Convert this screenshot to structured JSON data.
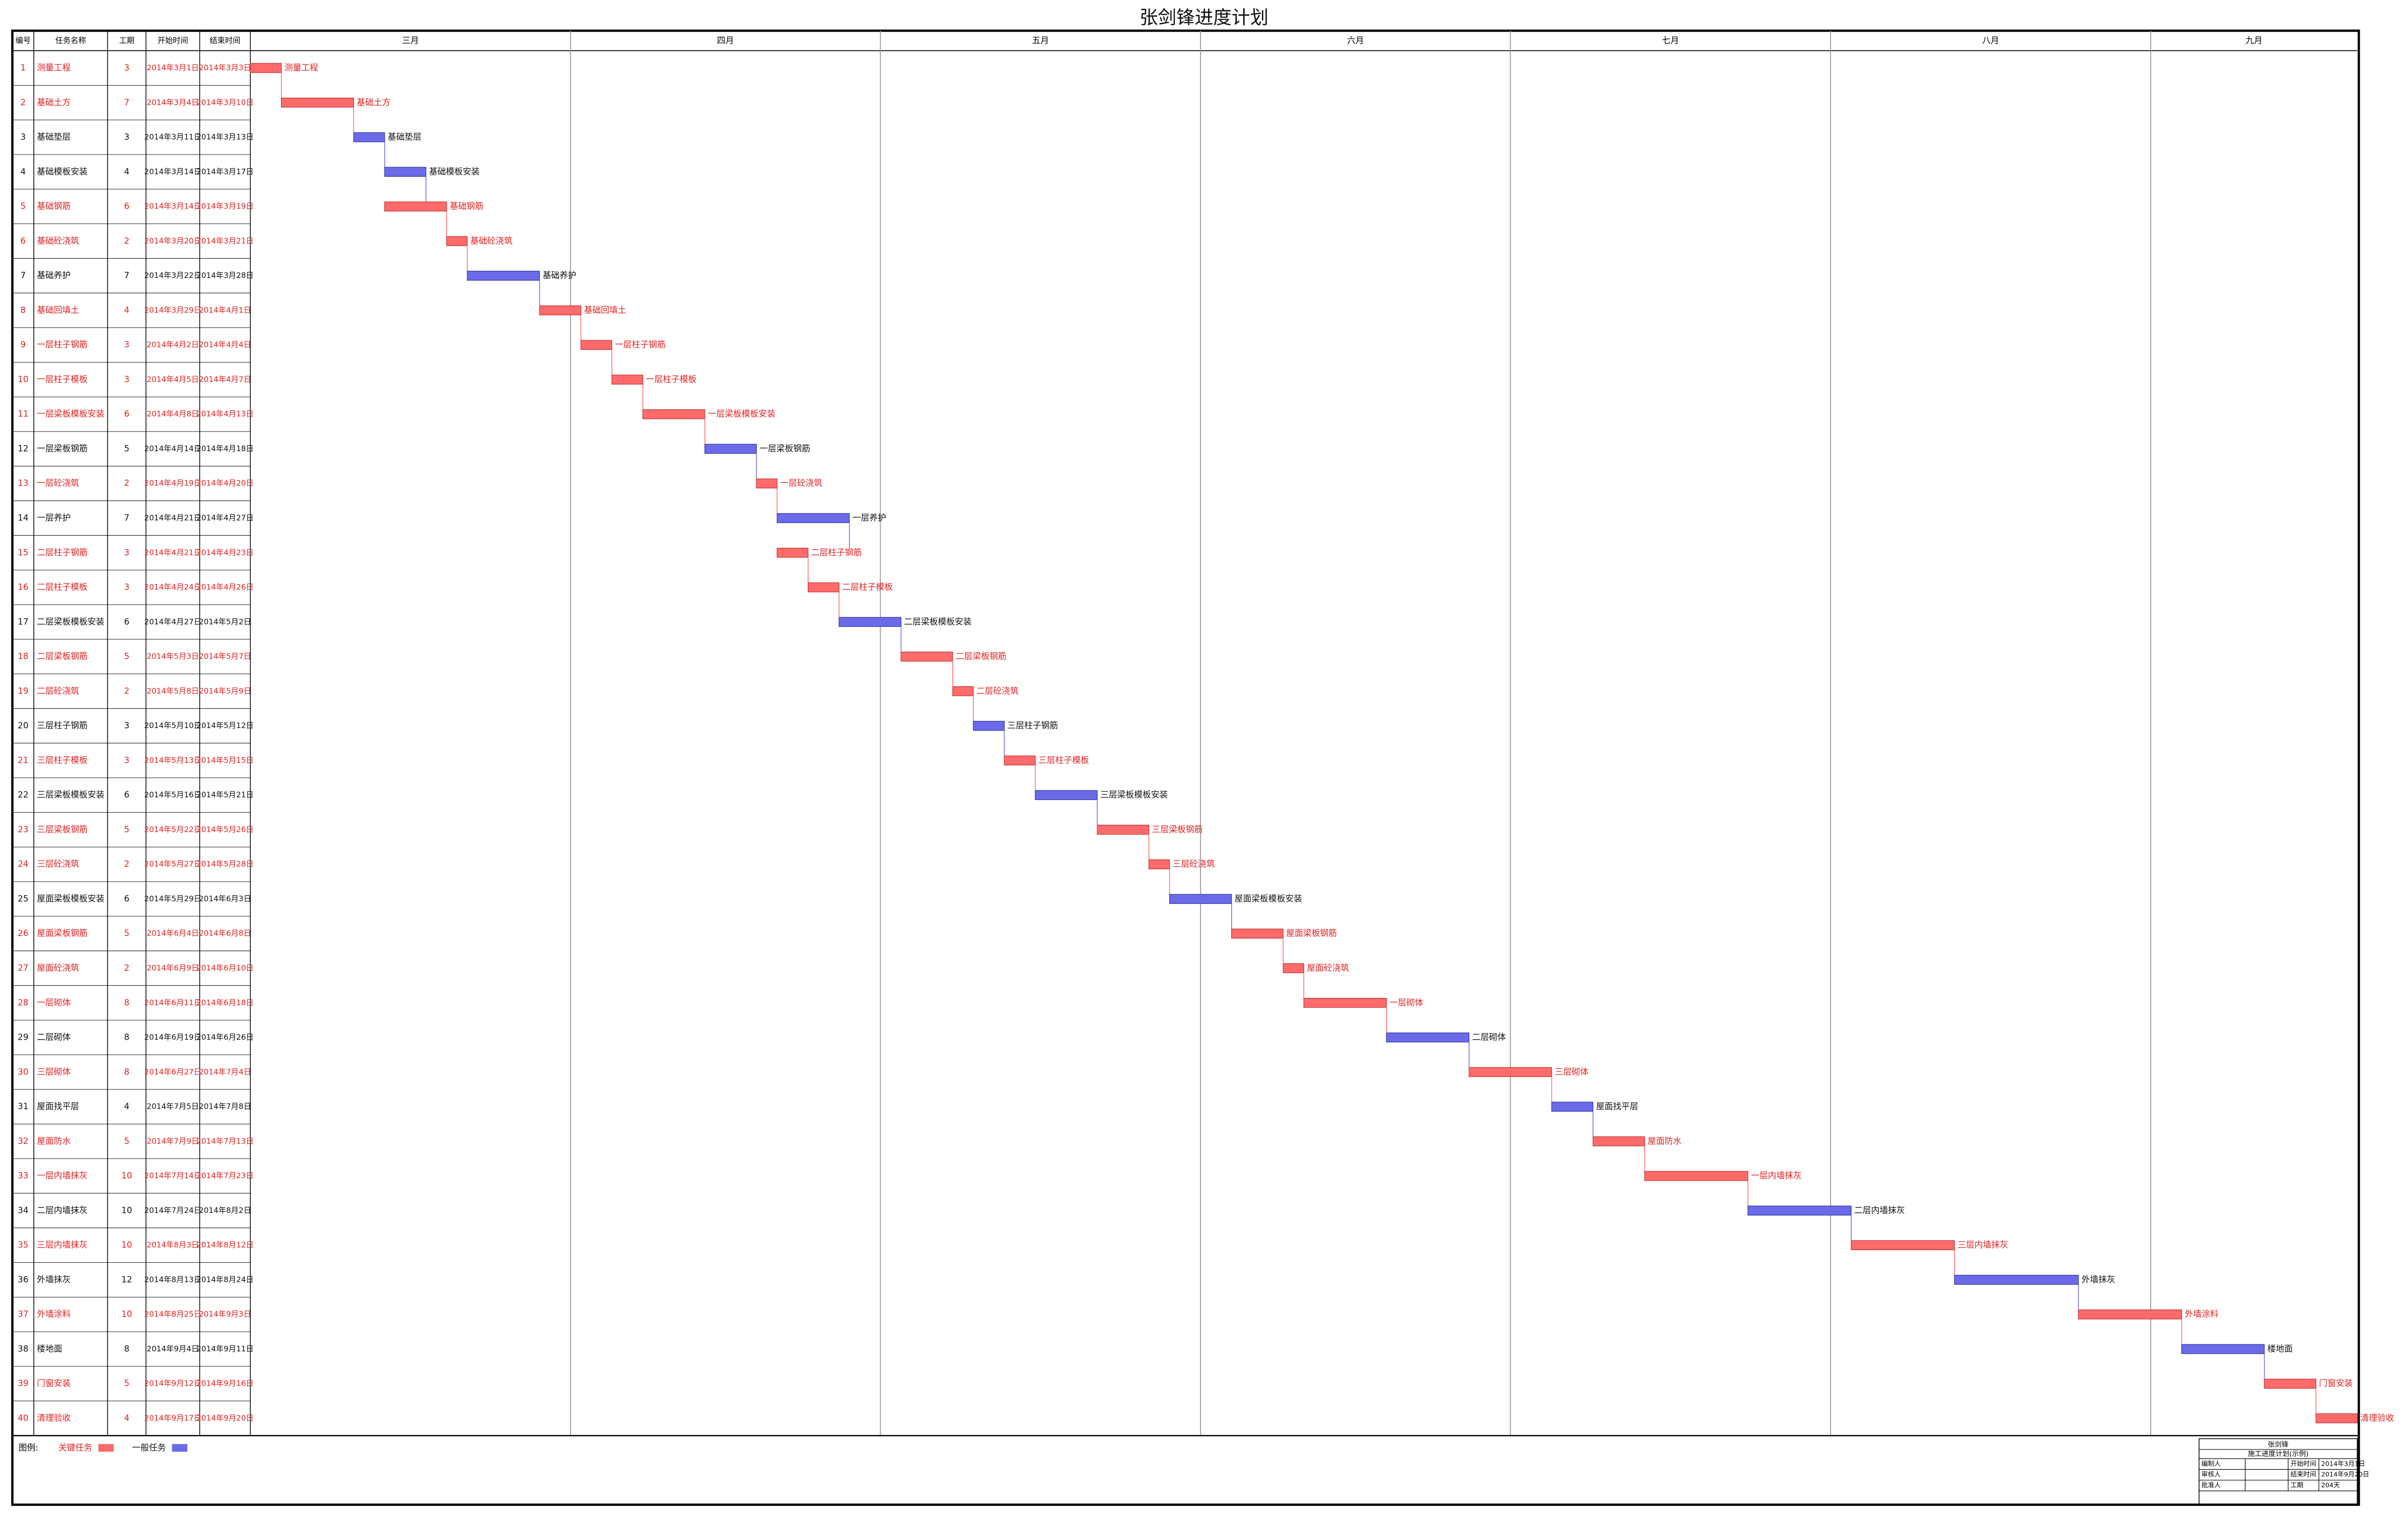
{
  "chart_data": {
    "type": "gantt",
    "title": "张剑锋进度计划",
    "columns": [
      "编号",
      "任务名称",
      "工期",
      "开始时间",
      "结束时间"
    ],
    "months": [
      "三月",
      "四月",
      "五月",
      "六月",
      "七月",
      "八月",
      "九月"
    ],
    "legend_title": "图例:",
    "legend": [
      {
        "name": "关键任务",
        "color": "#ff6b6b"
      },
      {
        "name": "一般任务",
        "color": "#6b6bea"
      }
    ],
    "tasks": [
      {
        "id": 1,
        "name": "测量工程",
        "duration": 3,
        "start": "2014年3月1日",
        "end": "2014年3月3日",
        "critical": true
      },
      {
        "id": 2,
        "name": "基础土方",
        "duration": 7,
        "start": "2014年3月4日",
        "end": "2014年3月10日",
        "critical": true
      },
      {
        "id": 3,
        "name": "基础垫层",
        "duration": 3,
        "start": "2014年3月11日",
        "end": "2014年3月13日",
        "critical": false
      },
      {
        "id": 4,
        "name": "基础模板安装",
        "duration": 4,
        "start": "2014年3月14日",
        "end": "2014年3月17日",
        "critical": false
      },
      {
        "id": 5,
        "name": "基础钢筋",
        "duration": 6,
        "start": "2014年3月14日",
        "end": "2014年3月19日",
        "critical": true
      },
      {
        "id": 6,
        "name": "基础砼浇筑",
        "duration": 2,
        "start": "2014年3月20日",
        "end": "2014年3月21日",
        "critical": true
      },
      {
        "id": 7,
        "name": "基础养护",
        "duration": 7,
        "start": "2014年3月22日",
        "end": "2014年3月28日",
        "critical": false
      },
      {
        "id": 8,
        "name": "基础回填土",
        "duration": 4,
        "start": "2014年3月29日",
        "end": "2014年4月1日",
        "critical": true
      },
      {
        "id": 9,
        "name": "一层柱子钢筋",
        "duration": 3,
        "start": "2014年4月2日",
        "end": "2014年4月4日",
        "critical": true
      },
      {
        "id": 10,
        "name": "一层柱子模板",
        "duration": 3,
        "start": "2014年4月5日",
        "end": "2014年4月7日",
        "critical": true
      },
      {
        "id": 11,
        "name": "一层梁板模板安装",
        "duration": 6,
        "start": "2014年4月8日",
        "end": "2014年4月13日",
        "critical": true
      },
      {
        "id": 12,
        "name": "一层梁板钢筋",
        "duration": 5,
        "start": "2014年4月14日",
        "end": "2014年4月18日",
        "critical": false
      },
      {
        "id": 13,
        "name": "一层砼浇筑",
        "duration": 2,
        "start": "2014年4月19日",
        "end": "2014年4月20日",
        "critical": true
      },
      {
        "id": 14,
        "name": "一层养护",
        "duration": 7,
        "start": "2014年4月21日",
        "end": "2014年4月27日",
        "critical": false
      },
      {
        "id": 15,
        "name": "二层柱子钢筋",
        "duration": 3,
        "start": "2014年4月21日",
        "end": "2014年4月23日",
        "critical": true
      },
      {
        "id": 16,
        "name": "二层柱子模板",
        "duration": 3,
        "start": "2014年4月24日",
        "end": "2014年4月26日",
        "critical": true
      },
      {
        "id": 17,
        "name": "二层梁板模板安装",
        "duration": 6,
        "start": "2014年4月27日",
        "end": "2014年5月2日",
        "critical": false
      },
      {
        "id": 18,
        "name": "二层梁板钢筋",
        "duration": 5,
        "start": "2014年5月3日",
        "end": "2014年5月7日",
        "critical": true
      },
      {
        "id": 19,
        "name": "二层砼浇筑",
        "duration": 2,
        "start": "2014年5月8日",
        "end": "2014年5月9日",
        "critical": true
      },
      {
        "id": 20,
        "name": "三层柱子钢筋",
        "duration": 3,
        "start": "2014年5月10日",
        "end": "2014年5月12日",
        "critical": false
      },
      {
        "id": 21,
        "name": "三层柱子模板",
        "duration": 3,
        "start": "2014年5月13日",
        "end": "2014年5月15日",
        "critical": true
      },
      {
        "id": 22,
        "name": "三层梁板模板安装",
        "duration": 6,
        "start": "2014年5月16日",
        "end": "2014年5月21日",
        "critical": false
      },
      {
        "id": 23,
        "name": "三层梁板钢筋",
        "duration": 5,
        "start": "2014年5月22日",
        "end": "2014年5月26日",
        "critical": true
      },
      {
        "id": 24,
        "name": "三层砼浇筑",
        "duration": 2,
        "start": "2014年5月27日",
        "end": "2014年5月28日",
        "critical": true
      },
      {
        "id": 25,
        "name": "屋面梁板模板安装",
        "duration": 6,
        "start": "2014年5月29日",
        "end": "2014年6月3日",
        "critical": false
      },
      {
        "id": 26,
        "name": "屋面梁板钢筋",
        "duration": 5,
        "start": "2014年6月4日",
        "end": "2014年6月8日",
        "critical": true
      },
      {
        "id": 27,
        "name": "屋面砼浇筑",
        "duration": 2,
        "start": "2014年6月9日",
        "end": "2014年6月10日",
        "critical": true
      },
      {
        "id": 28,
        "name": "一层砌体",
        "duration": 8,
        "start": "2014年6月11日",
        "end": "2014年6月18日",
        "critical": true
      },
      {
        "id": 29,
        "name": "二层砌体",
        "duration": 8,
        "start": "2014年6月19日",
        "end": "2014年6月26日",
        "critical": false
      },
      {
        "id": 30,
        "name": "三层砌体",
        "duration": 8,
        "start": "2014年6月27日",
        "end": "2014年7月4日",
        "critical": true
      },
      {
        "id": 31,
        "name": "屋面找平层",
        "duration": 4,
        "start": "2014年7月5日",
        "end": "2014年7月8日",
        "critical": false
      },
      {
        "id": 32,
        "name": "屋面防水",
        "duration": 5,
        "start": "2014年7月9日",
        "end": "2014年7月13日",
        "critical": true
      },
      {
        "id": 33,
        "name": "一层内墙抹灰",
        "duration": 10,
        "start": "2014年7月14日",
        "end": "2014年7月23日",
        "critical": true
      },
      {
        "id": 34,
        "name": "二层内墙抹灰",
        "duration": 10,
        "start": "2014年7月24日",
        "end": "2014年8月2日",
        "critical": false
      },
      {
        "id": 35,
        "name": "三层内墙抹灰",
        "duration": 10,
        "start": "2014年8月3日",
        "end": "2014年8月12日",
        "critical": true
      },
      {
        "id": 36,
        "name": "外墙抹灰",
        "duration": 12,
        "start": "2014年8月13日",
        "end": "2014年8月24日",
        "critical": false
      },
      {
        "id": 37,
        "name": "外墙涂料",
        "duration": 10,
        "start": "2014年8月25日",
        "end": "2014年9月3日",
        "critical": true
      },
      {
        "id": 38,
        "name": "楼地面",
        "duration": 8,
        "start": "2014年9月4日",
        "end": "2014年9月11日",
        "critical": false
      },
      {
        "id": 39,
        "name": "门窗安装",
        "duration": 5,
        "start": "2014年9月12日",
        "end": "2014年9月16日",
        "critical": true
      },
      {
        "id": 40,
        "name": "清理验收",
        "duration": 4,
        "start": "2014年9月17日",
        "end": "2014年9月20日",
        "critical": true
      }
    ],
    "info": {
      "owner": "张剑锋",
      "subtitle": "施工进度计划(示例)",
      "rows": [
        [
          "编制人",
          "",
          "开始时间",
          "2014年3月1日"
        ],
        [
          "审核人",
          "",
          "结束时间",
          "2014年9月20日"
        ],
        [
          "批准人",
          "",
          "工期",
          "204天"
        ]
      ],
      "start": "2014年3月1日",
      "end": "2014年9月20日"
    }
  }
}
